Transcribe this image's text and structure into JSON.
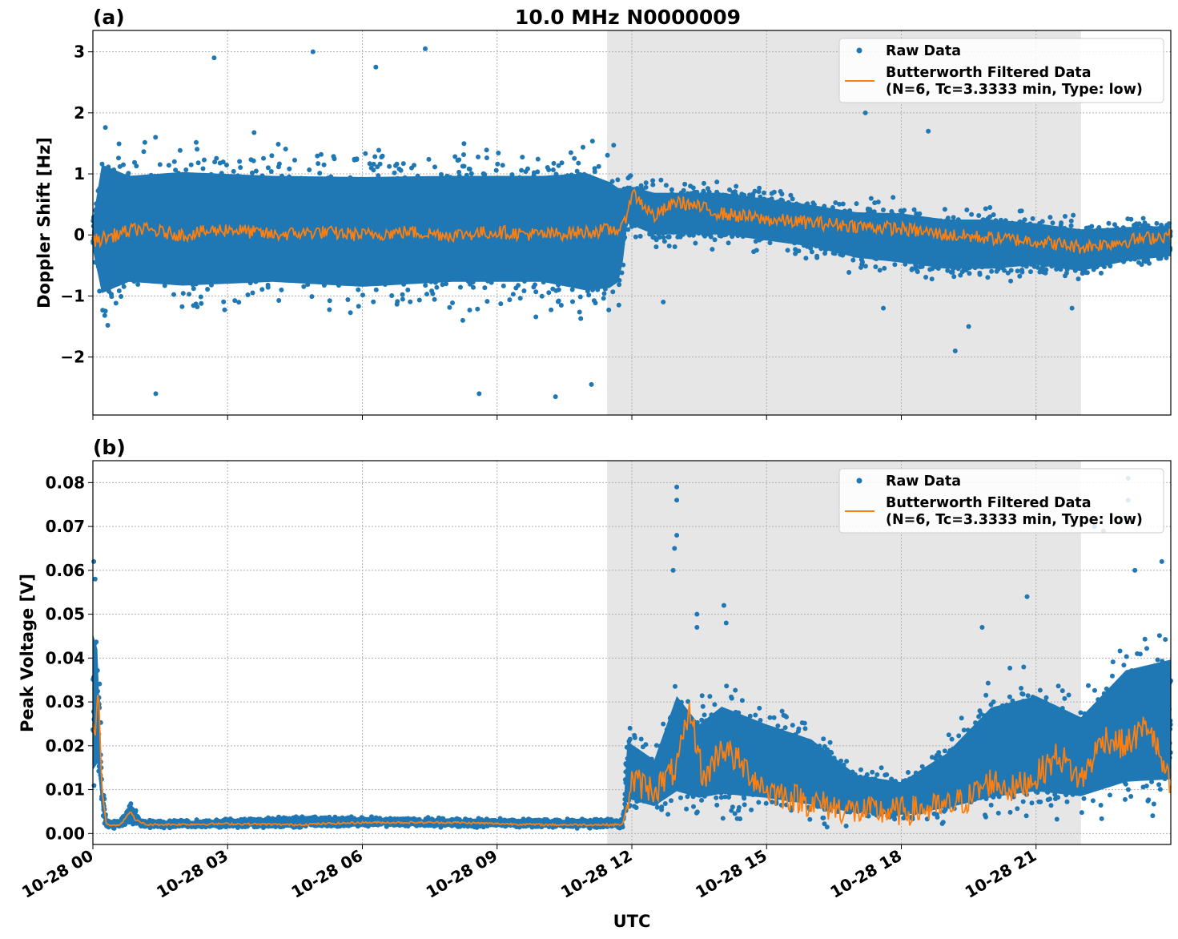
{
  "title": "10.0 MHz N0000009",
  "colors": {
    "raw": "#1f77b4",
    "filtered": "#ff7f0e",
    "shade": "#e6e6e6"
  },
  "x_axis": {
    "label": "UTC",
    "range_hours": [
      0,
      24
    ],
    "ticks": [
      {
        "hour": 0,
        "label": "10-28 00"
      },
      {
        "hour": 3,
        "label": "10-28 03"
      },
      {
        "hour": 6,
        "label": "10-28 06"
      },
      {
        "hour": 9,
        "label": "10-28 09"
      },
      {
        "hour": 12,
        "label": "10-28 12"
      },
      {
        "hour": 15,
        "label": "10-28 15"
      },
      {
        "hour": 18,
        "label": "10-28 18"
      },
      {
        "hour": 21,
        "label": "10-28 21"
      }
    ]
  },
  "legend": {
    "raw_label": "Raw Data",
    "filtered_line1": "Butterworth Filtered Data",
    "filtered_line2": "(N=6, Tc=3.3333 min, Type: low)",
    "placement": "top-right"
  },
  "chart_data": [
    {
      "panel": "(a)",
      "type": "scatter",
      "ylabel": "Doppler Shift [Hz]",
      "ylim": [
        -2.95,
        3.35
      ],
      "yticks": [
        {
          "v": -2,
          "label": "−2"
        },
        {
          "v": -1,
          "label": "−1"
        },
        {
          "v": 0,
          "label": "0"
        },
        {
          "v": 1,
          "label": "1"
        },
        {
          "v": 2,
          "label": "2"
        },
        {
          "v": 3,
          "label": "3"
        }
      ],
      "shaded_span_hours": [
        11.45,
        22.0
      ],
      "series": [
        {
          "name": "Raw Data",
          "kind": "band",
          "x": [
            0,
            0.2,
            0.8,
            2,
            4,
            6,
            8,
            10,
            11,
            11.5,
            11.75,
            11.9,
            12.5,
            13,
            14,
            15,
            16,
            17,
            18,
            19,
            20,
            21,
            22,
            23,
            24
          ],
          "low": [
            -0.4,
            -1.6,
            -1.3,
            -1.4,
            -1.3,
            -1.4,
            -1.3,
            -1.3,
            -1.5,
            -1.4,
            -1.2,
            0.0,
            -0.2,
            -0.2,
            -0.2,
            -0.3,
            -0.4,
            -0.6,
            -0.7,
            -0.8,
            -0.8,
            -0.7,
            -0.8,
            -0.6,
            -0.5
          ],
          "high": [
            0.4,
            1.8,
            1.5,
            1.6,
            1.5,
            1.5,
            1.5,
            1.5,
            1.6,
            1.4,
            1.2,
            1.0,
            0.9,
            0.9,
            0.9,
            0.8,
            0.7,
            0.6,
            0.6,
            0.5,
            0.5,
            0.4,
            0.3,
            0.3,
            0.3
          ]
        },
        {
          "name": "Butterworth Filtered Data",
          "kind": "line",
          "x": [
            0,
            0.5,
            1,
            2,
            3,
            4,
            5,
            6,
            7,
            8,
            9,
            10,
            11,
            11.8,
            12,
            12.5,
            13,
            13.5,
            14,
            15,
            16,
            17,
            18,
            19,
            20,
            21,
            22,
            23,
            24
          ],
          "y": [
            -0.1,
            0.0,
            0.1,
            0.0,
            0.1,
            0.0,
            0.05,
            0.0,
            0.05,
            0.0,
            0.05,
            0.0,
            0.05,
            0.1,
            0.7,
            0.3,
            0.55,
            0.45,
            0.35,
            0.25,
            0.2,
            0.15,
            0.1,
            0.0,
            -0.05,
            -0.1,
            -0.2,
            -0.1,
            0.0
          ]
        }
      ],
      "outliers": [
        {
          "x": 4.9,
          "y": 3.0
        },
        {
          "x": 7.4,
          "y": 3.05
        },
        {
          "x": 2.7,
          "y": 2.9
        },
        {
          "x": 6.3,
          "y": 2.75
        },
        {
          "x": 1.4,
          "y": -2.6
        },
        {
          "x": 10.3,
          "y": -2.65
        },
        {
          "x": 8.6,
          "y": -2.6
        },
        {
          "x": 11.1,
          "y": -2.45
        },
        {
          "x": 17.2,
          "y": 2.0
        },
        {
          "x": 18.6,
          "y": 1.7
        },
        {
          "x": 19.2,
          "y": -1.9
        },
        {
          "x": 19.5,
          "y": -1.5
        },
        {
          "x": 12.7,
          "y": -1.1
        },
        {
          "x": 21.8,
          "y": -1.2
        },
        {
          "x": 17.6,
          "y": -1.2
        }
      ]
    },
    {
      "panel": "(b)",
      "type": "scatter",
      "ylabel": "Peak Voltage [V]",
      "ylim": [
        -0.0025,
        0.085
      ],
      "yticks": [
        {
          "v": 0.0,
          "label": "0.00"
        },
        {
          "v": 0.01,
          "label": "0.01"
        },
        {
          "v": 0.02,
          "label": "0.02"
        },
        {
          "v": 0.03,
          "label": "0.03"
        },
        {
          "v": 0.04,
          "label": "0.04"
        },
        {
          "v": 0.05,
          "label": "0.05"
        },
        {
          "v": 0.06,
          "label": "0.06"
        },
        {
          "v": 0.07,
          "label": "0.07"
        },
        {
          "v": 0.08,
          "label": "0.08"
        }
      ],
      "shaded_span_hours": [
        11.45,
        22.0
      ],
      "series": [
        {
          "name": "Raw Data",
          "kind": "band",
          "x": [
            0,
            0.1,
            0.15,
            0.2,
            0.3,
            0.6,
            0.85,
            0.9,
            1.1,
            3,
            4.5,
            6,
            8,
            10,
            11.8,
            11.9,
            12.5,
            13,
            13.5,
            14,
            15,
            16,
            17,
            18,
            19,
            20,
            21,
            22,
            23,
            24
          ],
          "low": [
            0.005,
            0.008,
            0.01,
            0.003,
            0.0012,
            0.0012,
            0.0015,
            0.0015,
            0.0012,
            0.0012,
            0.0012,
            0.0015,
            0.0015,
            0.0012,
            0.0012,
            0.004,
            0.003,
            0.003,
            0.003,
            0.003,
            0.003,
            0.002,
            0.002,
            0.002,
            0.002,
            0.002,
            0.003,
            0.003,
            0.004,
            0.004
          ],
          "high": [
            0.055,
            0.05,
            0.04,
            0.015,
            0.003,
            0.003,
            0.008,
            0.006,
            0.003,
            0.0035,
            0.004,
            0.004,
            0.0035,
            0.0035,
            0.0035,
            0.025,
            0.02,
            0.038,
            0.03,
            0.035,
            0.03,
            0.026,
            0.016,
            0.014,
            0.022,
            0.035,
            0.038,
            0.032,
            0.045,
            0.048
          ]
        },
        {
          "name": "Butterworth Filtered Data",
          "kind": "line",
          "x": [
            0,
            0.05,
            0.12,
            0.2,
            0.3,
            0.6,
            0.85,
            0.95,
            1.2,
            3,
            4.5,
            6,
            8,
            10,
            11.8,
            12,
            12.5,
            13,
            13.3,
            13.6,
            14,
            14.5,
            15,
            16,
            17,
            18,
            19,
            19.5,
            20,
            20.5,
            21,
            21.5,
            22,
            22.5,
            23,
            23.5,
            24
          ],
          "y": [
            0.025,
            0.022,
            0.034,
            0.01,
            0.002,
            0.002,
            0.005,
            0.003,
            0.002,
            0.0022,
            0.002,
            0.0025,
            0.0025,
            0.002,
            0.002,
            0.012,
            0.01,
            0.015,
            0.028,
            0.012,
            0.02,
            0.015,
            0.01,
            0.007,
            0.005,
            0.005,
            0.006,
            0.008,
            0.012,
            0.01,
            0.013,
            0.018,
            0.012,
            0.022,
            0.02,
            0.025,
            0.01
          ]
        }
      ],
      "outliers": [
        {
          "x": 13.0,
          "y": 0.079
        },
        {
          "x": 13.0,
          "y": 0.076
        },
        {
          "x": 13.0,
          "y": 0.068
        },
        {
          "x": 12.95,
          "y": 0.065
        },
        {
          "x": 12.92,
          "y": 0.06
        },
        {
          "x": 13.45,
          "y": 0.05
        },
        {
          "x": 13.45,
          "y": 0.047
        },
        {
          "x": 14.05,
          "y": 0.052
        },
        {
          "x": 14.1,
          "y": 0.048
        },
        {
          "x": 0.02,
          "y": 0.062
        },
        {
          "x": 0.05,
          "y": 0.058
        },
        {
          "x": 23.05,
          "y": 0.081
        },
        {
          "x": 23.05,
          "y": 0.076
        },
        {
          "x": 23.0,
          "y": 0.072
        },
        {
          "x": 22.3,
          "y": 0.07
        },
        {
          "x": 22.5,
          "y": 0.069
        },
        {
          "x": 23.8,
          "y": 0.062
        },
        {
          "x": 20.8,
          "y": 0.054
        },
        {
          "x": 19.8,
          "y": 0.047
        },
        {
          "x": 23.2,
          "y": 0.06
        }
      ]
    }
  ]
}
